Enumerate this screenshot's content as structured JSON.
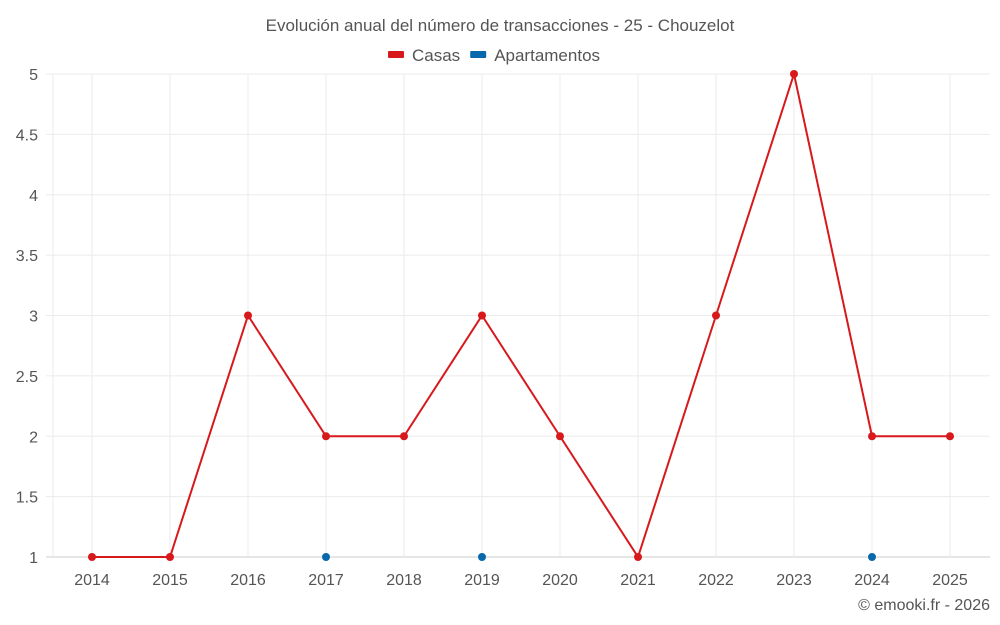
{
  "chart_data": {
    "type": "line",
    "title": "Evolución anual del número de transacciones - 25 - Chouzelot",
    "categories": [
      "2014",
      "2015",
      "2016",
      "2017",
      "2018",
      "2019",
      "2020",
      "2021",
      "2022",
      "2023",
      "2024",
      "2025"
    ],
    "series": [
      {
        "name": "Casas",
        "color": "#d7191c",
        "values": [
          1,
          1,
          3,
          2,
          2,
          3,
          2,
          1,
          3,
          5,
          2,
          2
        ],
        "line": true
      },
      {
        "name": "Apartamentos",
        "color": "#0868ac",
        "values": [
          null,
          null,
          null,
          1,
          null,
          1,
          null,
          null,
          null,
          null,
          1,
          null
        ],
        "line": false
      }
    ],
    "yticks": [
      "1",
      "1.5",
      "2",
      "2.5",
      "3",
      "3.5",
      "4",
      "4.5",
      "5"
    ],
    "ylim": [
      1,
      5
    ],
    "xlabel": "",
    "ylabel": "",
    "grid": true,
    "legend": "top-center"
  },
  "credit": "© emooki.fr - 2026"
}
